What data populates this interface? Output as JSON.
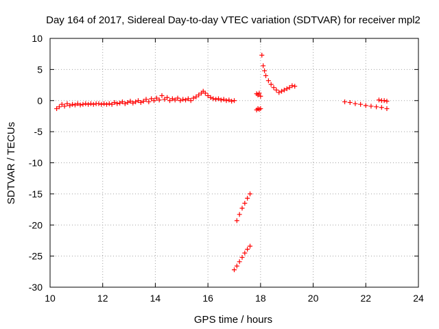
{
  "chart_data": {
    "type": "scatter",
    "title": "Day 164 of 2017, Sidereal Day-to-day VTEC variation (SDTVAR) for receiver mpl2",
    "xlabel": "GPS time / hours",
    "ylabel": "SDTVAR / TECUs",
    "xlim": [
      10,
      24
    ],
    "ylim": [
      -30,
      10
    ],
    "xticks": [
      10,
      12,
      14,
      16,
      18,
      20,
      22,
      24
    ],
    "yticks": [
      -30,
      -25,
      -20,
      -15,
      -10,
      -5,
      0,
      5,
      10
    ],
    "xtick_labels": [
      "10",
      "12",
      "14",
      "16",
      "18",
      "20",
      "22",
      "24"
    ],
    "ytick_labels": [
      "-30",
      "-25",
      "-20",
      "-15",
      "-10",
      "-5",
      "0",
      "5",
      "10"
    ],
    "grid": true,
    "marker": "plus",
    "color": "#ff0000",
    "series": [
      {
        "name": "SDTVAR",
        "x": [
          10.25,
          10.35,
          10.45,
          10.55,
          10.65,
          10.75,
          10.85,
          10.95,
          11.05,
          11.15,
          11.25,
          11.35,
          11.45,
          11.55,
          11.65,
          11.75,
          11.85,
          11.95,
          12.05,
          12.15,
          12.25,
          12.35,
          12.45,
          12.55,
          12.65,
          12.75,
          12.85,
          12.95,
          13.05,
          13.15,
          13.25,
          13.35,
          13.45,
          13.55,
          13.65,
          13.75,
          13.85,
          13.95,
          14.05,
          14.15,
          14.25,
          14.35,
          14.45,
          14.55,
          14.65,
          14.75,
          14.85,
          14.95,
          15.05,
          15.15,
          15.25,
          15.35,
          15.45,
          15.55,
          15.65,
          15.75,
          15.82,
          15.9,
          16.0,
          16.1,
          16.2,
          16.3,
          16.4,
          16.5,
          16.6,
          16.7,
          16.8,
          16.9,
          17.0,
          17.1,
          17.2,
          17.3,
          17.4,
          17.5,
          17.6,
          17.0,
          17.1,
          17.2,
          17.3,
          17.4,
          17.5,
          17.6,
          17.85,
          17.9,
          17.95,
          18.0,
          17.85,
          17.9,
          17.95,
          18.0,
          18.05,
          18.1,
          18.15,
          18.2,
          18.3,
          18.4,
          18.5,
          18.6,
          18.7,
          18.8,
          18.9,
          19.0,
          19.1,
          19.2,
          19.3,
          21.2,
          21.4,
          21.6,
          21.8,
          22.0,
          22.2,
          22.4,
          22.6,
          22.8,
          22.5,
          22.6,
          22.7,
          22.8
        ],
        "y": [
          -1.3,
          -1.0,
          -0.6,
          -0.9,
          -0.5,
          -0.8,
          -0.6,
          -0.7,
          -0.5,
          -0.7,
          -0.6,
          -0.5,
          -0.6,
          -0.5,
          -0.6,
          -0.5,
          -0.5,
          -0.6,
          -0.5,
          -0.6,
          -0.5,
          -0.6,
          -0.3,
          -0.5,
          -0.4,
          -0.2,
          -0.5,
          -0.3,
          -0.1,
          -0.4,
          -0.2,
          0.0,
          -0.3,
          -0.1,
          0.2,
          -0.2,
          0.3,
          0.0,
          0.4,
          0.1,
          0.8,
          0.2,
          0.5,
          0.0,
          0.3,
          0.1,
          0.4,
          0.0,
          0.2,
          0.1,
          0.3,
          0.0,
          0.4,
          0.6,
          0.9,
          1.2,
          1.5,
          1.2,
          0.8,
          0.5,
          0.3,
          0.2,
          0.3,
          0.1,
          0.2,
          0.0,
          0.1,
          -0.1,
          0.0,
          -19.3,
          -18.3,
          -17.3,
          -16.5,
          -15.7,
          -15.0,
          -27.2,
          -26.6,
          -25.9,
          -25.2,
          -24.5,
          -23.9,
          -23.4,
          1.1,
          0.9,
          1.2,
          0.7,
          -1.5,
          -1.3,
          -1.4,
          -1.3,
          7.3,
          5.6,
          4.8,
          4.0,
          3.2,
          2.6,
          2.1,
          1.7,
          1.3,
          1.5,
          1.7,
          1.9,
          2.1,
          2.4,
          2.3,
          -0.2,
          -0.3,
          -0.5,
          -0.6,
          -0.8,
          -0.9,
          -1.0,
          -1.1,
          -1.3,
          0.1,
          0.0,
          0.0,
          -0.1
        ]
      }
    ]
  }
}
